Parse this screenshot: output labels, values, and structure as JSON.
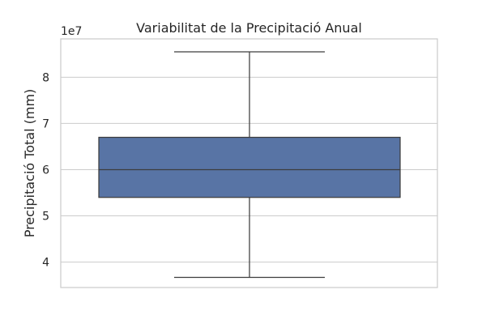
{
  "chart_data": {
    "type": "box",
    "title": "Variabilitat de la Precipitació Anual",
    "xlabel": "",
    "ylabel": "Precipitació Total (mm)",
    "y_offset_label": "1e7",
    "y_scale_factor": 10000000,
    "ylim": [
      34500000,
      88300000
    ],
    "yticks": [
      4,
      5,
      6,
      7,
      8
    ],
    "grid": true,
    "box": {
      "whisker_low": 36700000,
      "q1": 54000000,
      "median": 60000000,
      "q3": 67000000,
      "whisker_high": 85500000
    },
    "colors": {
      "box_fill": "#5874a5",
      "box_edge": "#3d3d3d",
      "grid": "#cccccc",
      "frame": "#cccccc"
    }
  }
}
